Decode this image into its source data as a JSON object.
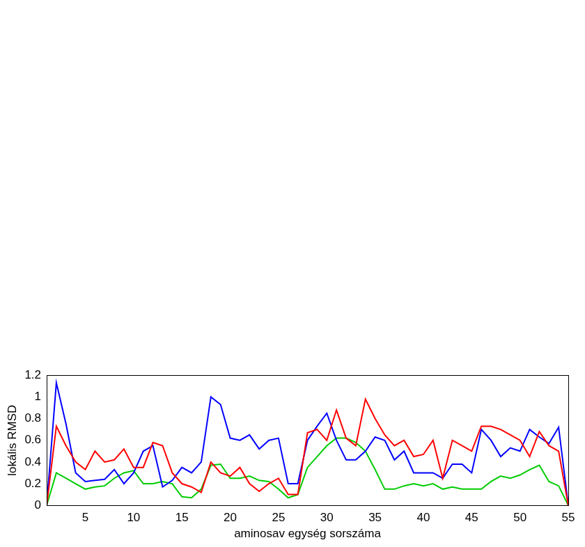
{
  "chart_data": {
    "type": "line",
    "x_label": "aminosav egység sorszáma",
    "y_label": "lokális RMSD",
    "x": [
      1,
      2,
      3,
      4,
      5,
      6,
      7,
      8,
      9,
      10,
      11,
      12,
      13,
      14,
      15,
      16,
      17,
      18,
      19,
      20,
      21,
      22,
      23,
      24,
      25,
      26,
      27,
      28,
      29,
      30,
      31,
      32,
      33,
      34,
      35,
      36,
      37,
      38,
      39,
      40,
      41,
      42,
      43,
      44,
      45,
      46,
      47,
      48,
      49,
      50,
      51,
      52,
      53,
      54,
      55
    ],
    "series": [
      {
        "color": "#ff0000",
        "values": [
          0,
          0.73,
          0.55,
          0.4,
          0.33,
          0.5,
          0.4,
          0.42,
          0.52,
          0.35,
          0.35,
          0.58,
          0.55,
          0.3,
          0.2,
          0.17,
          0.12,
          0.4,
          0.3,
          0.27,
          0.35,
          0.2,
          0.13,
          0.2,
          0.25,
          0.1,
          0.1,
          0.67,
          0.7,
          0.6,
          0.88,
          0.62,
          0.55,
          0.98,
          0.8,
          0.65,
          0.55,
          0.6,
          0.45,
          0.47,
          0.6,
          0.25,
          0.6,
          0.55,
          0.5,
          0.73,
          0.73,
          0.7,
          0.65,
          0.6,
          0.45,
          0.68,
          0.55,
          0.5,
          0
        ]
      },
      {
        "color": "#0000ff",
        "values": [
          0,
          1.13,
          0.75,
          0.3,
          0.22,
          0.23,
          0.24,
          0.33,
          0.2,
          0.3,
          0.5,
          0.55,
          0.17,
          0.23,
          0.35,
          0.3,
          0.4,
          1.0,
          0.93,
          0.62,
          0.6,
          0.65,
          0.52,
          0.6,
          0.62,
          0.2,
          0.2,
          0.6,
          0.73,
          0.85,
          0.6,
          0.42,
          0.42,
          0.5,
          0.63,
          0.6,
          0.42,
          0.5,
          0.3,
          0.3,
          0.3,
          0.25,
          0.38,
          0.38,
          0.3,
          0.7,
          0.6,
          0.45,
          0.53,
          0.5,
          0.7,
          0.63,
          0.57,
          0.72,
          0
        ]
      },
      {
        "color": "#00cc00",
        "values": [
          0,
          0.3,
          0.25,
          0.2,
          0.15,
          0.17,
          0.18,
          0.25,
          0.3,
          0.32,
          0.2,
          0.2,
          0.22,
          0.2,
          0.08,
          0.07,
          0.15,
          0.37,
          0.38,
          0.25,
          0.25,
          0.27,
          0.23,
          0.22,
          0.15,
          0.07,
          0.1,
          0.35,
          0.45,
          0.55,
          0.62,
          0.62,
          0.58,
          0.5,
          0.33,
          0.15,
          0.15,
          0.18,
          0.2,
          0.18,
          0.2,
          0.15,
          0.17,
          0.15,
          0.15,
          0.15,
          0.22,
          0.27,
          0.25,
          0.28,
          0.33,
          0.37,
          0.22,
          0.18,
          0
        ]
      }
    ],
    "xlim": [
      1,
      55
    ],
    "xticks": [
      5,
      10,
      15,
      20,
      25,
      30,
      35,
      40,
      45,
      50,
      55
    ],
    "ylim": [
      0,
      1.2
    ],
    "yticks": [
      0,
      0.2,
      0.4,
      0.6,
      0.8,
      1,
      1.2
    ],
    "grid": false
  }
}
